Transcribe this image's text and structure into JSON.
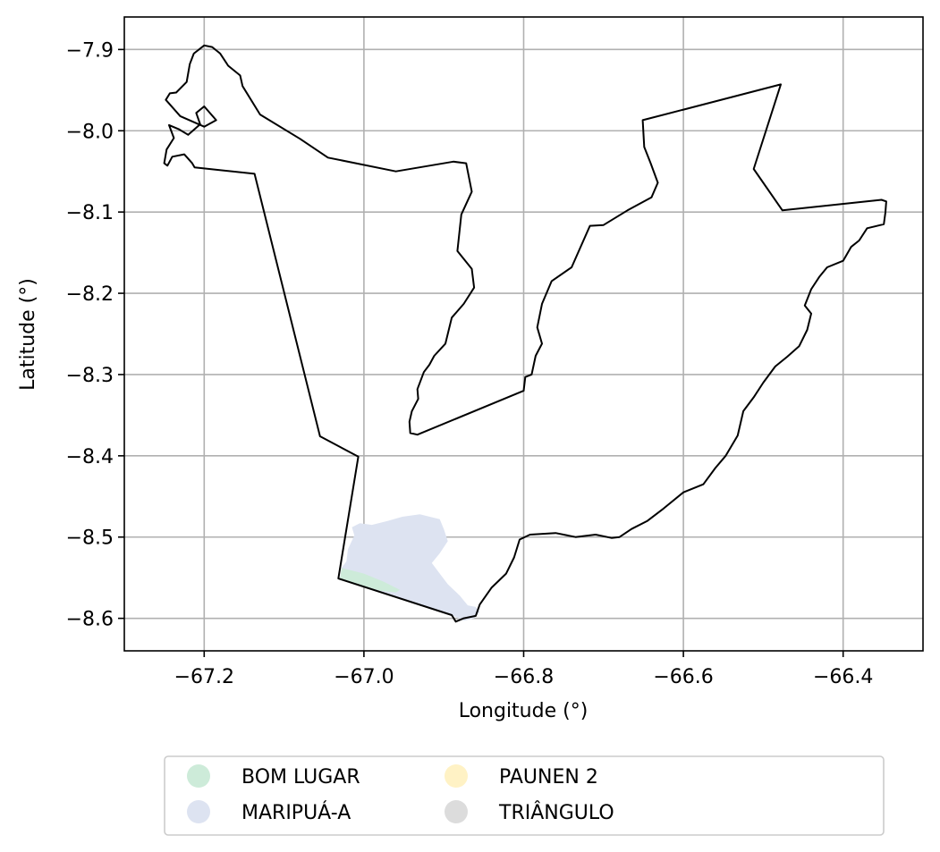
{
  "chart_data": {
    "type": "map",
    "xlabel": "Longitude (°)",
    "ylabel": "Latitude (°)",
    "xlim": [
      -67.3,
      -66.3
    ],
    "ylim": [
      -8.64,
      -7.86
    ],
    "xticks": [
      -67.2,
      -67.0,
      -66.8,
      -66.6,
      -66.4
    ],
    "xtick_labels": [
      "−67.2",
      "−67.0",
      "−66.8",
      "−66.6",
      "−66.4"
    ],
    "yticks": [
      -7.9,
      -8.0,
      -8.1,
      -8.2,
      -8.3,
      -8.4,
      -8.5,
      -8.6
    ],
    "ytick_labels": [
      "−7.9",
      "−8.0",
      "−8.1",
      "−8.2",
      "−8.3",
      "−8.4",
      "−8.5",
      "−8.6"
    ],
    "grid": true,
    "boundary": {
      "stroke": "#000000",
      "coords": [
        [
          -67.2,
          -7.895
        ],
        [
          -67.19,
          -7.897
        ],
        [
          -67.18,
          -7.905
        ],
        [
          -67.17,
          -7.92
        ],
        [
          -67.155,
          -7.932
        ],
        [
          -67.152,
          -7.945
        ],
        [
          -67.13,
          -7.98
        ],
        [
          -67.08,
          -8.01
        ],
        [
          -67.045,
          -8.033
        ],
        [
          -66.96,
          -8.05
        ],
        [
          -66.888,
          -8.038
        ],
        [
          -66.872,
          -8.04
        ],
        [
          -66.865,
          -8.075
        ],
        [
          -66.878,
          -8.103
        ],
        [
          -66.883,
          -8.148
        ],
        [
          -66.865,
          -8.17
        ],
        [
          -66.862,
          -8.193
        ],
        [
          -66.875,
          -8.213
        ],
        [
          -66.89,
          -8.23
        ],
        [
          -66.898,
          -8.262
        ],
        [
          -66.912,
          -8.277
        ],
        [
          -66.918,
          -8.288
        ],
        [
          -66.925,
          -8.297
        ],
        [
          -66.933,
          -8.318
        ],
        [
          -66.932,
          -8.33
        ],
        [
          -66.94,
          -8.345
        ],
        [
          -66.943,
          -8.358
        ],
        [
          -66.942,
          -8.372
        ],
        [
          -66.933,
          -8.374
        ],
        [
          -66.8,
          -8.32
        ],
        [
          -66.798,
          -8.303
        ],
        [
          -66.79,
          -8.3
        ],
        [
          -66.785,
          -8.277
        ],
        [
          -66.777,
          -8.262
        ],
        [
          -66.783,
          -8.242
        ],
        [
          -66.777,
          -8.213
        ],
        [
          -66.765,
          -8.185
        ],
        [
          -66.74,
          -8.168
        ],
        [
          -66.717,
          -8.117
        ],
        [
          -66.7,
          -8.116
        ],
        [
          -66.67,
          -8.098
        ],
        [
          -66.64,
          -8.082
        ],
        [
          -66.632,
          -8.064
        ],
        [
          -66.641,
          -8.04
        ],
        [
          -66.649,
          -8.02
        ],
        [
          -66.651,
          -7.987
        ],
        [
          -66.478,
          -7.943
        ],
        [
          -66.512,
          -8.047
        ],
        [
          -66.476,
          -8.098
        ],
        [
          -66.352,
          -8.085
        ],
        [
          -66.346,
          -8.087
        ],
        [
          -66.347,
          -8.1
        ],
        [
          -66.349,
          -8.115
        ],
        [
          -66.37,
          -8.12
        ],
        [
          -66.38,
          -8.135
        ],
        [
          -66.39,
          -8.143
        ],
        [
          -66.4,
          -8.16
        ],
        [
          -66.42,
          -8.168
        ],
        [
          -66.43,
          -8.18
        ],
        [
          -66.44,
          -8.195
        ],
        [
          -66.448,
          -8.215
        ],
        [
          -66.44,
          -8.225
        ],
        [
          -66.445,
          -8.245
        ],
        [
          -66.455,
          -8.265
        ],
        [
          -66.47,
          -8.278
        ],
        [
          -66.485,
          -8.29
        ],
        [
          -66.5,
          -8.31
        ],
        [
          -66.512,
          -8.328
        ],
        [
          -66.525,
          -8.345
        ],
        [
          -66.532,
          -8.375
        ],
        [
          -66.547,
          -8.4
        ],
        [
          -66.56,
          -8.415
        ],
        [
          -66.575,
          -8.435
        ],
        [
          -66.6,
          -8.445
        ],
        [
          -66.625,
          -8.465
        ],
        [
          -66.645,
          -8.48
        ],
        [
          -66.665,
          -8.49
        ],
        [
          -66.68,
          -8.5
        ],
        [
          -66.69,
          -8.501
        ],
        [
          -66.71,
          -8.497
        ],
        [
          -66.735,
          -8.5
        ],
        [
          -66.76,
          -8.495
        ],
        [
          -66.792,
          -8.497
        ],
        [
          -66.805,
          -8.503
        ],
        [
          -66.812,
          -8.525
        ],
        [
          -66.822,
          -8.545
        ],
        [
          -66.84,
          -8.562
        ],
        [
          -66.855,
          -8.583
        ],
        [
          -66.86,
          -8.597
        ],
        [
          -66.875,
          -8.6
        ],
        [
          -66.885,
          -8.604
        ],
        [
          -66.89,
          -8.596
        ],
        [
          -67.032,
          -8.551
        ],
        [
          -67.007,
          -8.401
        ],
        [
          -67.055,
          -8.376
        ],
        [
          -67.137,
          -8.053
        ],
        [
          -67.212,
          -8.045
        ],
        [
          -67.215,
          -8.04
        ],
        [
          -67.225,
          -8.029
        ],
        [
          -67.24,
          -8.032
        ],
        [
          -67.246,
          -8.043
        ],
        [
          -67.25,
          -8.04
        ],
        [
          -67.247,
          -8.023
        ],
        [
          -67.238,
          -8.009
        ],
        [
          -67.244,
          -7.993
        ],
        [
          -67.232,
          -7.998
        ],
        [
          -67.22,
          -8.005
        ],
        [
          -67.205,
          -7.992
        ],
        [
          -67.21,
          -7.978
        ],
        [
          -67.2,
          -7.97
        ],
        [
          -67.185,
          -7.987
        ],
        [
          -67.2,
          -7.995
        ],
        [
          -67.23,
          -7.982
        ],
        [
          -67.248,
          -7.962
        ],
        [
          -67.243,
          -7.954
        ],
        [
          -67.235,
          -7.953
        ],
        [
          -67.222,
          -7.94
        ],
        [
          -67.218,
          -7.918
        ],
        [
          -67.213,
          -7.905
        ],
        [
          -67.2,
          -7.895
        ]
      ]
    },
    "regions": [
      {
        "name": "MARIPUÁ-A",
        "color": "#dde3f1",
        "coords": [
          [
            -67.028,
            -8.538
          ],
          [
            -67.022,
            -8.53
          ],
          [
            -67.02,
            -8.515
          ],
          [
            -67.012,
            -8.498
          ],
          [
            -67.015,
            -8.488
          ],
          [
            -67.005,
            -8.483
          ],
          [
            -66.99,
            -8.485
          ],
          [
            -66.97,
            -8.48
          ],
          [
            -66.952,
            -8.475
          ],
          [
            -66.93,
            -8.472
          ],
          [
            -66.905,
            -8.478
          ],
          [
            -66.9,
            -8.49
          ],
          [
            -66.895,
            -8.505
          ],
          [
            -66.905,
            -8.52
          ],
          [
            -66.915,
            -8.532
          ],
          [
            -66.905,
            -8.545
          ],
          [
            -66.895,
            -8.558
          ],
          [
            -66.88,
            -8.572
          ],
          [
            -66.87,
            -8.584
          ],
          [
            -66.86,
            -8.586
          ],
          [
            -66.855,
            -8.592
          ],
          [
            -66.862,
            -8.6
          ],
          [
            -66.875,
            -8.603
          ],
          [
            -66.89,
            -8.596
          ],
          [
            -66.98,
            -8.567
          ],
          [
            -67.03,
            -8.551
          ]
        ]
      },
      {
        "name": "BOM LUGAR",
        "color": "#cdebd9",
        "coords": [
          [
            -67.03,
            -8.551
          ],
          [
            -67.028,
            -8.538
          ],
          [
            -67.0,
            -8.545
          ],
          [
            -66.975,
            -8.555
          ],
          [
            -66.955,
            -8.565
          ],
          [
            -66.96,
            -8.568
          ],
          [
            -66.98,
            -8.566
          ]
        ]
      }
    ],
    "legend": {
      "placement": "bottom-center",
      "columns": 3,
      "entries": [
        {
          "label": "BOM LUGAR",
          "color": "#cdebd9"
        },
        {
          "label": "MARIPUÁ-A",
          "color": "#dde3f1"
        },
        {
          "label": "PAUNEN 2",
          "color": "#fff2c5"
        },
        {
          "label": "TRIÂNGULO",
          "color": "#dcdcdc"
        }
      ]
    }
  }
}
